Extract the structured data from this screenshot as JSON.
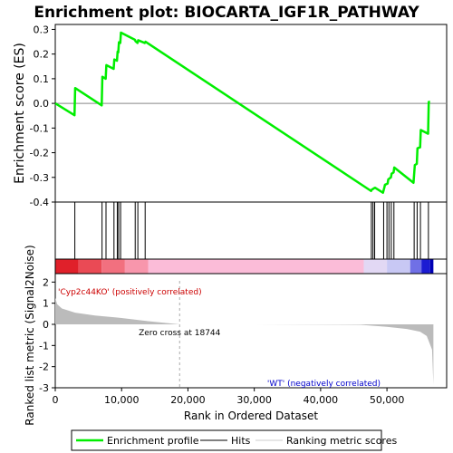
{
  "chart_data": {
    "type": "line",
    "title": "Enrichment plot: BIOCARTA_IGF1R_PATHWAY",
    "es_panel": {
      "ylabel": "Enrichment score (ES)",
      "ylim": [
        -0.4,
        0.32
      ],
      "yticks": [
        "0.3",
        "0.2",
        "0.1",
        "0.0",
        "-0.1",
        "-0.2",
        "-0.3",
        "-0.4"
      ],
      "series": [
        {
          "name": "Enrichment profile",
          "color": "#00ee00",
          "points": [
            [
              0,
              0.0
            ],
            [
              2900,
              -0.048
            ],
            [
              3000,
              0.062
            ],
            [
              7000,
              -0.008
            ],
            [
              7100,
              0.108
            ],
            [
              7600,
              0.1
            ],
            [
              7700,
              0.155
            ],
            [
              8800,
              0.14
            ],
            [
              8900,
              0.178
            ],
            [
              9300,
              0.173
            ],
            [
              9400,
              0.21
            ],
            [
              9500,
              0.207
            ],
            [
              9600,
              0.248
            ],
            [
              9800,
              0.245
            ],
            [
              9900,
              0.287
            ],
            [
              12000,
              0.258
            ],
            [
              12100,
              0.252
            ],
            [
              12400,
              0.245
            ],
            [
              12500,
              0.256
            ],
            [
              13500,
              0.245
            ],
            [
              13600,
              0.25
            ],
            [
              47600,
              -0.355
            ],
            [
              47700,
              -0.35
            ],
            [
              48000,
              -0.345
            ],
            [
              48200,
              -0.342
            ],
            [
              49400,
              -0.362
            ],
            [
              49600,
              -0.342
            ],
            [
              49700,
              -0.33
            ],
            [
              50100,
              -0.325
            ],
            [
              50200,
              -0.308
            ],
            [
              50600,
              -0.3
            ],
            [
              50700,
              -0.285
            ],
            [
              51000,
              -0.28
            ],
            [
              51100,
              -0.26
            ],
            [
              54000,
              -0.322
            ],
            [
              54200,
              -0.25
            ],
            [
              54500,
              -0.245
            ],
            [
              54600,
              -0.182
            ],
            [
              55000,
              -0.178
            ],
            [
              55100,
              -0.108
            ],
            [
              56200,
              -0.123
            ],
            [
              56300,
              0.006
            ],
            [
              56500,
              0.006
            ]
          ]
        }
      ]
    },
    "hits": {
      "name": "Hits",
      "positions": [
        2950,
        7050,
        7650,
        8850,
        9350,
        9550,
        9850,
        12050,
        12450,
        13550,
        47650,
        47900,
        48150,
        49500,
        50000,
        50300,
        50650,
        51050,
        54100,
        54550,
        55050,
        56250
      ]
    },
    "ranking_panel": {
      "ylabel": "Ranked list metric (Signal2Noise)",
      "ylim": [
        -3,
        2.4
      ],
      "yticks": [
        "2",
        "1",
        "0",
        "-1",
        "-2",
        "-3"
      ],
      "series_name": "Ranking metric scores",
      "color": "#bbbbbb",
      "zero_cross_label": "Zero cross at 18744",
      "zero_cross_at": 18744,
      "pos_label": "'Cyp2c44KO' (positively correlated)",
      "neg_label": "'WT' (negatively correlated)",
      "pos_color": "#cc0000",
      "neg_color": "#0000cc",
      "profile": [
        [
          0,
          1.25
        ],
        [
          300,
          0.95
        ],
        [
          1000,
          0.75
        ],
        [
          3000,
          0.55
        ],
        [
          6000,
          0.42
        ],
        [
          10000,
          0.3
        ],
        [
          14000,
          0.15
        ],
        [
          18744,
          0.0
        ],
        [
          30000,
          0.0
        ],
        [
          46000,
          -0.02
        ],
        [
          50000,
          -0.12
        ],
        [
          53000,
          -0.22
        ],
        [
          55000,
          -0.35
        ],
        [
          56000,
          -0.55
        ],
        [
          56800,
          -1.2
        ],
        [
          57000,
          -2.85
        ]
      ]
    },
    "xaxis": {
      "xlabel": "Rank in Ordered Dataset",
      "xlim": [
        0,
        59000
      ],
      "xticks": [
        "0",
        "10,000",
        "20,000",
        "30,000",
        "40,000",
        "50,000"
      ]
    },
    "legend": {
      "placement": "bottom",
      "entries": [
        "Enrichment profile",
        "Hits",
        "Ranking metric scores"
      ]
    }
  }
}
